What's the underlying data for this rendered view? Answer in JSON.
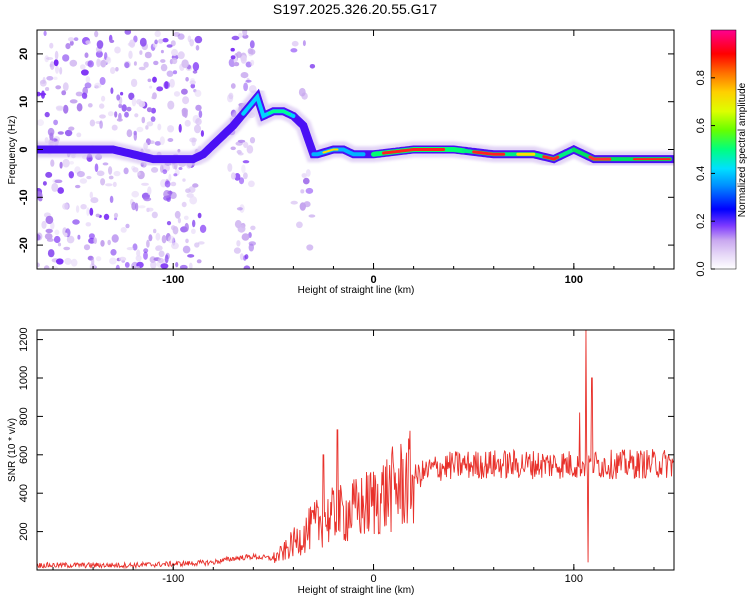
{
  "title": "S197.2025.326.20.55.G17",
  "chart_data": [
    {
      "type": "heatmap",
      "name": "spectrogram",
      "xlabel": "Height of straight line (km)",
      "ylabel": "Frequency (Hz)",
      "xlim": [
        -168,
        150
      ],
      "ylim": [
        -25,
        25
      ],
      "xticks": [
        -100,
        0,
        100
      ],
      "yticks": [
        -20,
        -10,
        0,
        10,
        20
      ],
      "ridge": {
        "x": [
          -168,
          -150,
          -130,
          -110,
          -100,
          -90,
          -85,
          -80,
          -70,
          -62,
          -58,
          -55,
          -50,
          -45,
          -40,
          -35,
          -30,
          -28,
          -20,
          -15,
          -10,
          -5,
          0,
          20,
          40,
          60,
          80,
          90,
          95,
          100,
          105,
          110,
          120,
          130,
          140,
          148
        ],
        "y": [
          0,
          0,
          0,
          -2,
          -2,
          -2,
          -1,
          1,
          5,
          9,
          11,
          7,
          8,
          8,
          7,
          5,
          -1,
          -1,
          0,
          0,
          -1,
          -1,
          -1,
          0,
          0,
          -1,
          -1,
          -2,
          -1,
          0,
          -1,
          -2,
          -2,
          -2,
          -2,
          -2
        ]
      },
      "colorbar": {
        "label": "Normalized spectral amplitude",
        "range": [
          0,
          1
        ],
        "ticks": [
          "0.0",
          "0.2",
          "0.4",
          "0.6",
          "0.8"
        ],
        "colors": [
          "#ffffff",
          "#d9c6f2",
          "#8a2be2",
          "#3a00ff",
          "#0000ff",
          "#00c8ff",
          "#00ff80",
          "#aaff00",
          "#ffff00",
          "#ff8000",
          "#ff0000",
          "#ff00a0"
        ]
      }
    },
    {
      "type": "line",
      "name": "snr",
      "xlabel": "Height of straight line (km)",
      "ylabel": "SNR (10 * v/v)",
      "xlim": [
        -168,
        150
      ],
      "ylim": [
        0,
        1250
      ],
      "xticks": [
        -100,
        0,
        100
      ],
      "yticks": [
        200,
        400,
        600,
        800,
        1000,
        1200
      ],
      "color": "#e8302a",
      "trend": {
        "x": [
          -168,
          -120,
          -90,
          -80,
          -70,
          -60,
          -50,
          -45,
          -40,
          -35,
          -30,
          -25,
          -20,
          -15,
          -10,
          -5,
          0,
          10,
          20,
          30,
          40,
          60,
          80,
          100,
          120,
          150
        ],
        "y": [
          25,
          25,
          35,
          40,
          60,
          70,
          60,
          90,
          140,
          180,
          230,
          260,
          280,
          290,
          310,
          330,
          360,
          420,
          480,
          530,
          545,
          550,
          550,
          550,
          550,
          555
        ]
      },
      "spikes": [
        {
          "x": -25,
          "y": 600
        },
        {
          "x": -18,
          "y": 730
        },
        {
          "x": 103,
          "y": 820
        },
        {
          "x": 106,
          "y": 1250
        },
        {
          "x": 107,
          "y": 40
        },
        {
          "x": 109,
          "y": 1000
        }
      ]
    }
  ]
}
